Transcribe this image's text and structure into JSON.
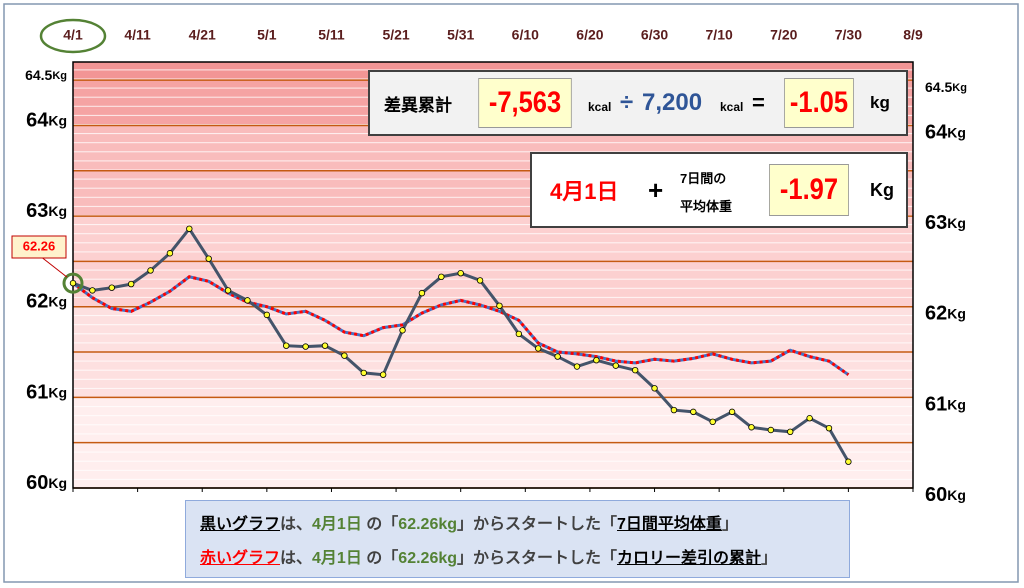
{
  "chart_data": {
    "type": "line",
    "xticks": [
      "4/1",
      "4/11",
      "4/21",
      "5/1",
      "5/11",
      "5/21",
      "5/31",
      "6/10",
      "6/20",
      "6/30",
      "7/10",
      "7/20",
      "7/30",
      "8/9"
    ],
    "xlim": [
      "4/1",
      "8/9"
    ],
    "ylim": [
      60,
      64.7
    ],
    "yticks": [
      60,
      61,
      62,
      63,
      64,
      64.5
    ],
    "y_unit": "Kg",
    "grid_lines": [
      60.5,
      61.5,
      62.5,
      63.5
    ],
    "x": [
      "4/1",
      "4/4",
      "4/7",
      "4/10",
      "4/13",
      "4/16",
      "4/19",
      "4/22",
      "4/25",
      "4/28",
      "5/1",
      "5/4",
      "5/7",
      "5/10",
      "5/13",
      "5/16",
      "5/19",
      "5/22",
      "5/25",
      "5/28",
      "5/31",
      "6/3",
      "6/6",
      "6/9",
      "6/12",
      "6/15",
      "6/18",
      "6/21",
      "6/24",
      "6/27",
      "6/30",
      "7/3",
      "7/6",
      "7/9",
      "7/12",
      "7/15",
      "7/18",
      "7/21",
      "7/24",
      "7/27",
      "7/30"
    ],
    "series": [
      {
        "color": "#44546a",
        "marker_color": "#ffff33",
        "values": [
          62.26,
          62.18,
          62.21,
          62.25,
          62.4,
          62.59,
          62.86,
          62.53,
          62.18,
          62.07,
          61.91,
          61.57,
          61.56,
          61.57,
          61.46,
          61.27,
          61.25,
          61.74,
          62.15,
          62.33,
          62.37,
          62.29,
          62.01,
          61.7,
          61.54,
          61.45,
          61.34,
          61.41,
          61.35,
          61.3,
          61.1,
          60.86,
          60.84,
          60.73,
          60.84,
          60.67,
          60.64,
          60.62,
          60.77,
          60.66,
          60.29
        ]
      },
      {
        "color": "#ff0000",
        "under_color": "#4472c4",
        "values": [
          62.26,
          62.1,
          61.98,
          61.95,
          62.05,
          62.17,
          62.33,
          62.28,
          62.15,
          62.05,
          62.0,
          61.92,
          61.95,
          61.85,
          61.72,
          61.68,
          61.77,
          61.8,
          61.93,
          62.02,
          62.07,
          62.02,
          61.95,
          61.85,
          61.6,
          61.5,
          61.48,
          61.45,
          61.4,
          61.38,
          61.42,
          61.4,
          61.43,
          61.48,
          61.42,
          61.38,
          61.4,
          61.52,
          61.45,
          61.4,
          61.25
        ]
      }
    ],
    "start_label": "62.26"
  },
  "panel1": {
    "label": "差異累計",
    "diff": "-7,563",
    "unit1": "kcal",
    "op1": "÷",
    "divisor": "7,200",
    "unit2": "kcal",
    "op2": "=",
    "result": "-1.05",
    "unit3": "kg"
  },
  "panel2": {
    "date": "4月1日",
    "op": "+",
    "line1": "7日間の",
    "line2": "平均体重",
    "result": "-1.97",
    "unit": "Kg"
  },
  "note": {
    "rows": [
      [
        "黒いグラフ",
        "は、",
        "4月1日",
        " の「",
        "62.26kg",
        "」からスタートした「",
        "7日間平均体重",
        "」"
      ],
      [
        "赤いグラフ",
        "は、",
        "4月1日",
        " の「",
        "62.26kg",
        "」からスタートした「",
        "カロリー差引の累計",
        "」"
      ]
    ]
  }
}
